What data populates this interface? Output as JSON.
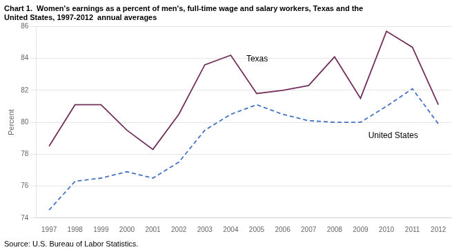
{
  "chart_data": {
    "type": "line",
    "title": [
      "Chart 1.  Women's earnings as a percent of men's, full-time wage and salary workers, Texas and the",
      "United States, 1997-2012  annual averages"
    ],
    "ylabel": "Percent",
    "source": "Source: U.S. Bureau of Labor Statistics.",
    "x": [
      1997,
      1998,
      1999,
      2000,
      2001,
      2002,
      2003,
      2004,
      2005,
      2006,
      2007,
      2008,
      2009,
      2010,
      2011,
      2012
    ],
    "series": [
      {
        "name": "Texas",
        "color": "#722F5A",
        "line_style": "solid",
        "values": [
          78.5,
          81.1,
          81.1,
          79.5,
          78.3,
          80.5,
          83.6,
          84.2,
          81.8,
          82.0,
          82.3,
          84.1,
          81.5,
          85.7,
          84.7,
          81.1
        ]
      },
      {
        "name": "United States",
        "color": "#4472C4",
        "line_style": "dashed",
        "values": [
          74.5,
          76.3,
          76.5,
          76.9,
          76.5,
          77.5,
          79.5,
          80.5,
          81.1,
          80.5,
          80.1,
          80.0,
          80.0,
          81.0,
          82.1,
          79.9
        ]
      }
    ],
    "xlim": [
      1996.5,
      2012.5
    ],
    "xticks": [
      1997,
      1998,
      1999,
      2000,
      2001,
      2002,
      2003,
      2004,
      2005,
      2006,
      2007,
      2008,
      2009,
      2010,
      2011,
      2012
    ],
    "ylim": [
      74,
      86
    ],
    "yticks": [
      74,
      76,
      78,
      80,
      82,
      84,
      86
    ],
    "grid": "y",
    "annotations": [
      {
        "text": "Texas",
        "x": 2004.6,
        "y": 83.7
      },
      {
        "text": "United States",
        "x": 2009.3,
        "y": 79.4
      }
    ]
  }
}
